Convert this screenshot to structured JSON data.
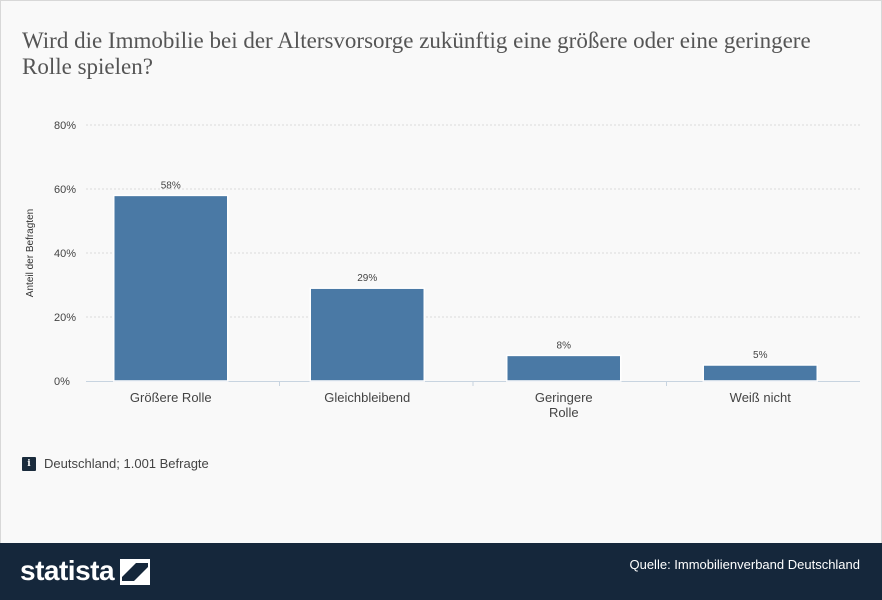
{
  "title": "Wird die Immobilie bei der Altersvorsorge zukünftig eine größere oder eine geringere Rolle spielen?",
  "note": "Deutschland; 1.001 Befragte",
  "info_icon_glyph": "i",
  "footer": {
    "brand": "statista",
    "source": "Quelle: Immobilienverband Deutschland"
  },
  "colors": {
    "bar": "#4a79a5",
    "footer": "#15273b",
    "grid": "#dcdcdc"
  },
  "chart_data": {
    "type": "bar",
    "categories": [
      [
        "Größere Rolle"
      ],
      [
        "Gleichbleibend"
      ],
      [
        "Geringere",
        "Rolle"
      ],
      [
        "Weiß nicht"
      ]
    ],
    "values": [
      58,
      29,
      8,
      5
    ],
    "data_labels": [
      "58%",
      "29%",
      "8%",
      "5%"
    ],
    "ylabel": "Anteil der Befragten",
    "ylim": [
      0,
      80
    ],
    "yticks": [
      0,
      20,
      40,
      60,
      80
    ],
    "ytick_labels": [
      "0%",
      "20%",
      "40%",
      "60%",
      "80%"
    ],
    "grid": true
  }
}
